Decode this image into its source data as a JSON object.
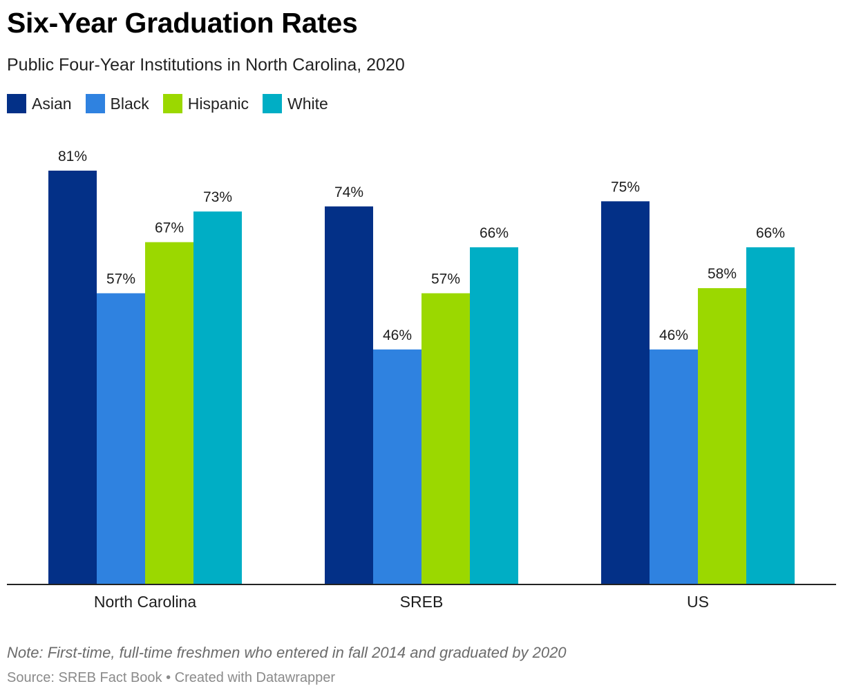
{
  "title": "Six-Year Graduation Rates",
  "subtitle": "Public Four-Year Institutions in North Carolina, 2020",
  "note": "Note: First-time, full-time freshmen who entered in fall 2014 and graduated by 2020",
  "source": "Source: SREB Fact Book",
  "credit": "Created with Datawrapper",
  "separator": "•",
  "colors": {
    "Asian": "#033087",
    "Black": "#2f82e0",
    "Hispanic": "#9bd800",
    "White": "#00aec5"
  },
  "chart_data": {
    "type": "bar",
    "categories": [
      "North Carolina",
      "SREB",
      "US"
    ],
    "series": [
      {
        "name": "Asian",
        "values": [
          81,
          74,
          75
        ],
        "labels": [
          "81%",
          "74%",
          "75%"
        ]
      },
      {
        "name": "Black",
        "values": [
          57,
          46,
          46
        ],
        "labels": [
          "57%",
          "46%",
          "46%"
        ]
      },
      {
        "name": "Hispanic",
        "values": [
          67,
          57,
          58
        ],
        "labels": [
          "67%",
          "57%",
          "58%"
        ]
      },
      {
        "name": "White",
        "values": [
          73,
          66,
          66
        ],
        "labels": [
          "73%",
          "66%",
          "66%"
        ]
      }
    ],
    "ylim": [
      0,
      81
    ],
    "legend": "top-left"
  }
}
